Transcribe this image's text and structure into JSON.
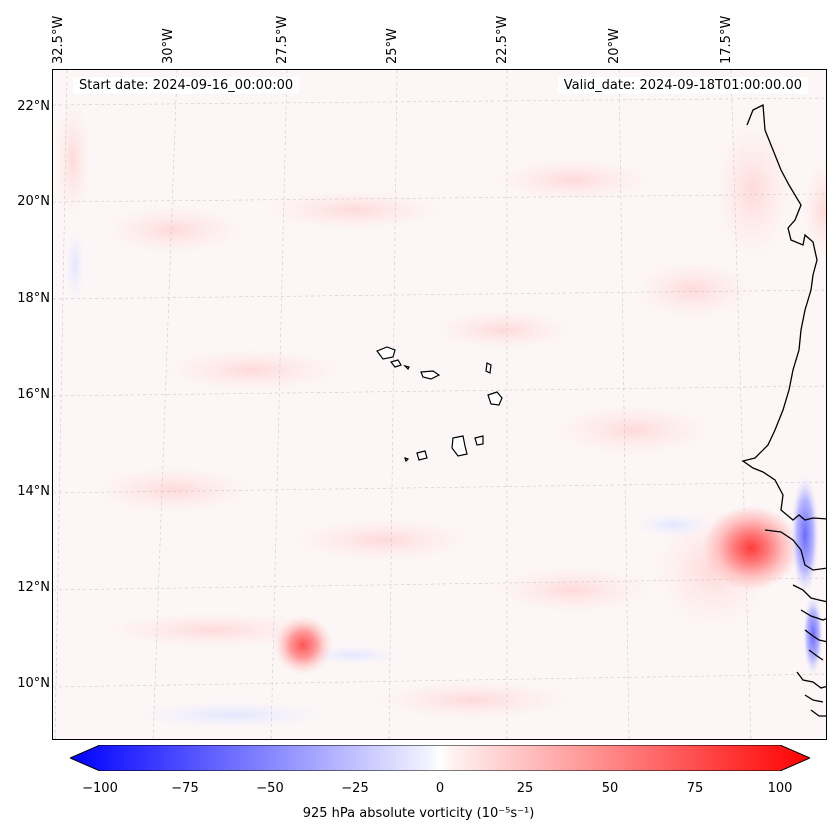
{
  "map": {
    "title_left": "Start date: 2024-09-16_00:00:00",
    "title_right": "Valid_date: 2024-09-18T01:00:00.00",
    "variable_label": "925 hPa absolute vorticity (10⁻⁵s⁻¹)",
    "longitude_labels": [
      "32.5°W",
      "30°W",
      "27.5°W",
      "25°W",
      "22.5°W",
      "20°W",
      "17.5°W"
    ],
    "latitude_labels": [
      "22°N",
      "20°N",
      "18°N",
      "16°N",
      "14°N",
      "12°N",
      "10°N"
    ],
    "colorbar": {
      "min": -100,
      "max": 100,
      "ticks": [
        "−100",
        "−75",
        "−50",
        "−25",
        "0",
        "25",
        "50",
        "75",
        "100"
      ],
      "colors": {
        "negative": "#0000ff",
        "zero": "#ffffff",
        "positive": "#ff0000"
      }
    },
    "features": {
      "vorticity_max_coastal": "strong positive vorticity off the West African coast near 12.8°N, 17.3°W",
      "vorticity_max_ocean": "positive vorticity centre near 10.8°N, 26.5°W",
      "negative_band": "negative vorticity strip along the coast near 12–14°N"
    }
  }
}
